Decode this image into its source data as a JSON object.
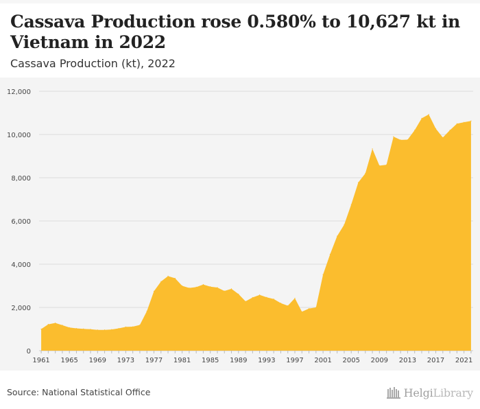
{
  "header": {
    "title": "Cassava Production rose 0.580% to 10,627 kt in Vietnam in 2022",
    "subtitle": "Cassava Production (kt), 2022"
  },
  "footer": {
    "source": "Source: National Statistical Office",
    "logo_text_bold": "Helgi",
    "logo_text_light": "Library"
  },
  "colors": {
    "area_fill": "#fbbd2e",
    "gridline": "#dddddd",
    "axis_text": "#444444",
    "panel_bg": "#f4f4f4"
  },
  "chart_data": {
    "type": "area",
    "title": "Cassava Production rose 0.580% to 10,627 kt in Vietnam in 2022",
    "subtitle": "Cassava Production (kt), 2022",
    "xlabel": "",
    "ylabel": "",
    "ylim": [
      0,
      12000
    ],
    "yticks": [
      0,
      2000,
      4000,
      6000,
      8000,
      10000,
      12000
    ],
    "ytick_labels": [
      "0",
      "2,000",
      "4,000",
      "6,000",
      "8,000",
      "10,000",
      "12,000"
    ],
    "xtick_labels": [
      "1961",
      "1965",
      "1969",
      "1973",
      "1977",
      "1981",
      "1985",
      "1989",
      "1993",
      "1997",
      "2001",
      "2005",
      "2009",
      "2013",
      "2017",
      "2021"
    ],
    "grid": true,
    "x": [
      1961,
      1962,
      1963,
      1964,
      1965,
      1966,
      1967,
      1968,
      1969,
      1970,
      1971,
      1972,
      1973,
      1974,
      1975,
      1976,
      1977,
      1978,
      1979,
      1980,
      1981,
      1982,
      1983,
      1984,
      1985,
      1986,
      1987,
      1988,
      1989,
      1990,
      1991,
      1992,
      1993,
      1994,
      1995,
      1996,
      1997,
      1998,
      1999,
      2000,
      2001,
      2002,
      2003,
      2004,
      2005,
      2006,
      2007,
      2008,
      2009,
      2010,
      2011,
      2012,
      2013,
      2014,
      2015,
      2016,
      2017,
      2018,
      2019,
      2020,
      2021,
      2022
    ],
    "series": [
      {
        "values": [
          1000,
          1220,
          1280,
          1180,
          1070,
          1030,
          1010,
          990,
          960,
          960,
          980,
          1030,
          1100,
          1110,
          1190,
          1830,
          2750,
          3200,
          3450,
          3350,
          3000,
          2900,
          2940,
          3060,
          2960,
          2920,
          2760,
          2860,
          2620,
          2280,
          2460,
          2580,
          2470,
          2390,
          2200,
          2080,
          2430,
          1800,
          1950,
          2000,
          3520,
          4460,
          5300,
          5830,
          6760,
          7780,
          8200,
          9340,
          8560,
          8600,
          9900,
          9750,
          9760,
          10200,
          10750,
          10930,
          10270,
          9860,
          10200,
          10500,
          10566,
          10627
        ]
      }
    ]
  }
}
